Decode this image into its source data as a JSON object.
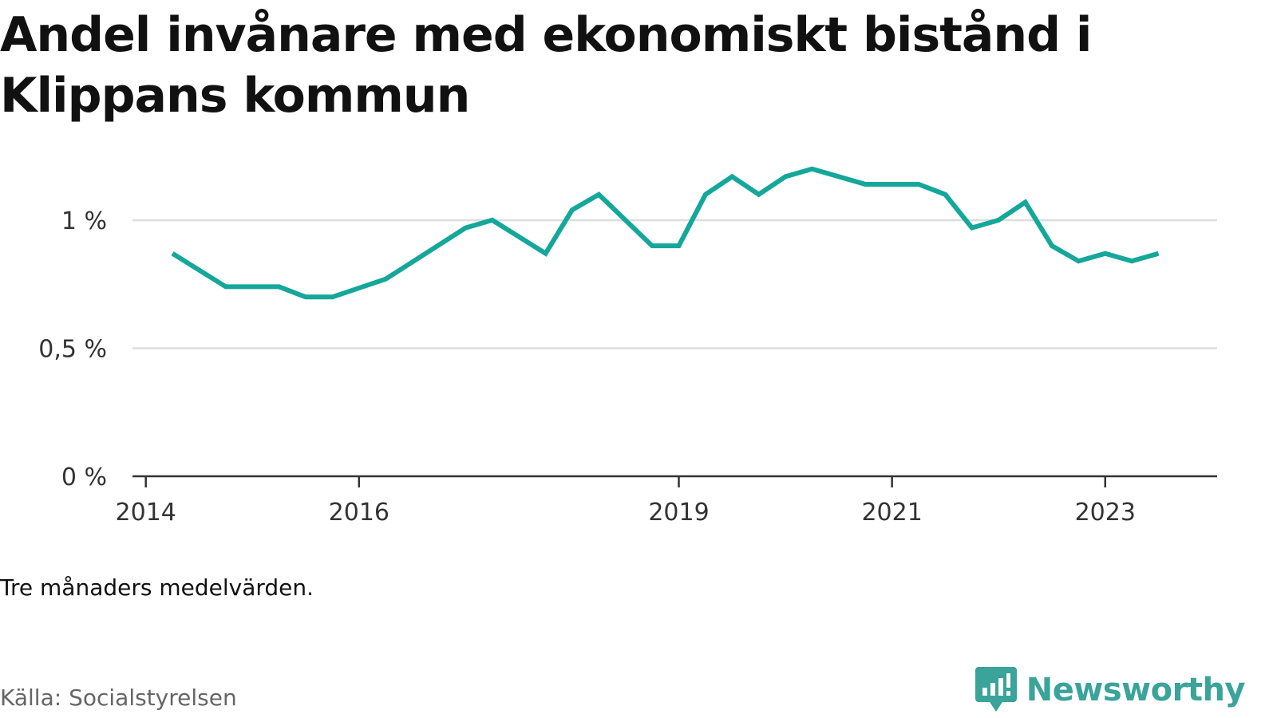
{
  "title": "Andel invånare med ekonomiskt bistånd i Klippans kommun",
  "note": "Tre månaders medelvärden.",
  "source": "Källa: Socialstyrelsen",
  "brand": {
    "name": "Newsworthy",
    "icon": "newsworthy-logo-icon",
    "color": "#3aa39a"
  },
  "colors": {
    "line": "#14a79a",
    "grid": "#dddddd",
    "axis": "#333333"
  },
  "chart_data": {
    "type": "line",
    "title": "Andel invånare med ekonomiskt bistånd i Klippans kommun",
    "xlabel": "",
    "ylabel": "",
    "ylim": [
      0,
      1.33
    ],
    "grid": true,
    "yticks": [
      {
        "value": 0,
        "label": "0 %"
      },
      {
        "value": 0.5,
        "label": "0,5 %"
      },
      {
        "value": 1,
        "label": "1 %"
      }
    ],
    "xticks": [
      {
        "value": 2014.0,
        "label": "2014"
      },
      {
        "value": 2016.0,
        "label": "2016"
      },
      {
        "value": 2019.0,
        "label": "2019"
      },
      {
        "value": 2021.0,
        "label": "2021"
      },
      {
        "value": 2023.0,
        "label": "2023"
      }
    ],
    "xlim": [
      2013.875,
      2024.05
    ],
    "series": [
      {
        "values": [
          {
            "x": "2014-04",
            "y": 0.87
          },
          {
            "x": "2014-10",
            "y": 0.74
          },
          {
            "x": "2015-04",
            "y": 0.74
          },
          {
            "x": "2015-07",
            "y": 0.7
          },
          {
            "x": "2015-10",
            "y": 0.7
          },
          {
            "x": "2016-04",
            "y": 0.77
          },
          {
            "x": "2017-01",
            "y": 0.97
          },
          {
            "x": "2017-04",
            "y": 1.0
          },
          {
            "x": "2017-10",
            "y": 0.87
          },
          {
            "x": "2018-01",
            "y": 1.04
          },
          {
            "x": "2018-04",
            "y": 1.1
          },
          {
            "x": "2018-10",
            "y": 0.9
          },
          {
            "x": "2019-01",
            "y": 0.9
          },
          {
            "x": "2019-04",
            "y": 1.1
          },
          {
            "x": "2019-07",
            "y": 1.17
          },
          {
            "x": "2019-10",
            "y": 1.1
          },
          {
            "x": "2020-01",
            "y": 1.17
          },
          {
            "x": "2020-04",
            "y": 1.2
          },
          {
            "x": "2020-10",
            "y": 1.14
          },
          {
            "x": "2021-04",
            "y": 1.14
          },
          {
            "x": "2021-07",
            "y": 1.1
          },
          {
            "x": "2021-10",
            "y": 0.97
          },
          {
            "x": "2022-01",
            "y": 1.0
          },
          {
            "x": "2022-04",
            "y": 1.07
          },
          {
            "x": "2022-07",
            "y": 0.9
          },
          {
            "x": "2022-10",
            "y": 0.84
          },
          {
            "x": "2023-01",
            "y": 0.87
          },
          {
            "x": "2023-04",
            "y": 0.84
          },
          {
            "x": "2023-07",
            "y": 0.87
          }
        ]
      }
    ]
  }
}
